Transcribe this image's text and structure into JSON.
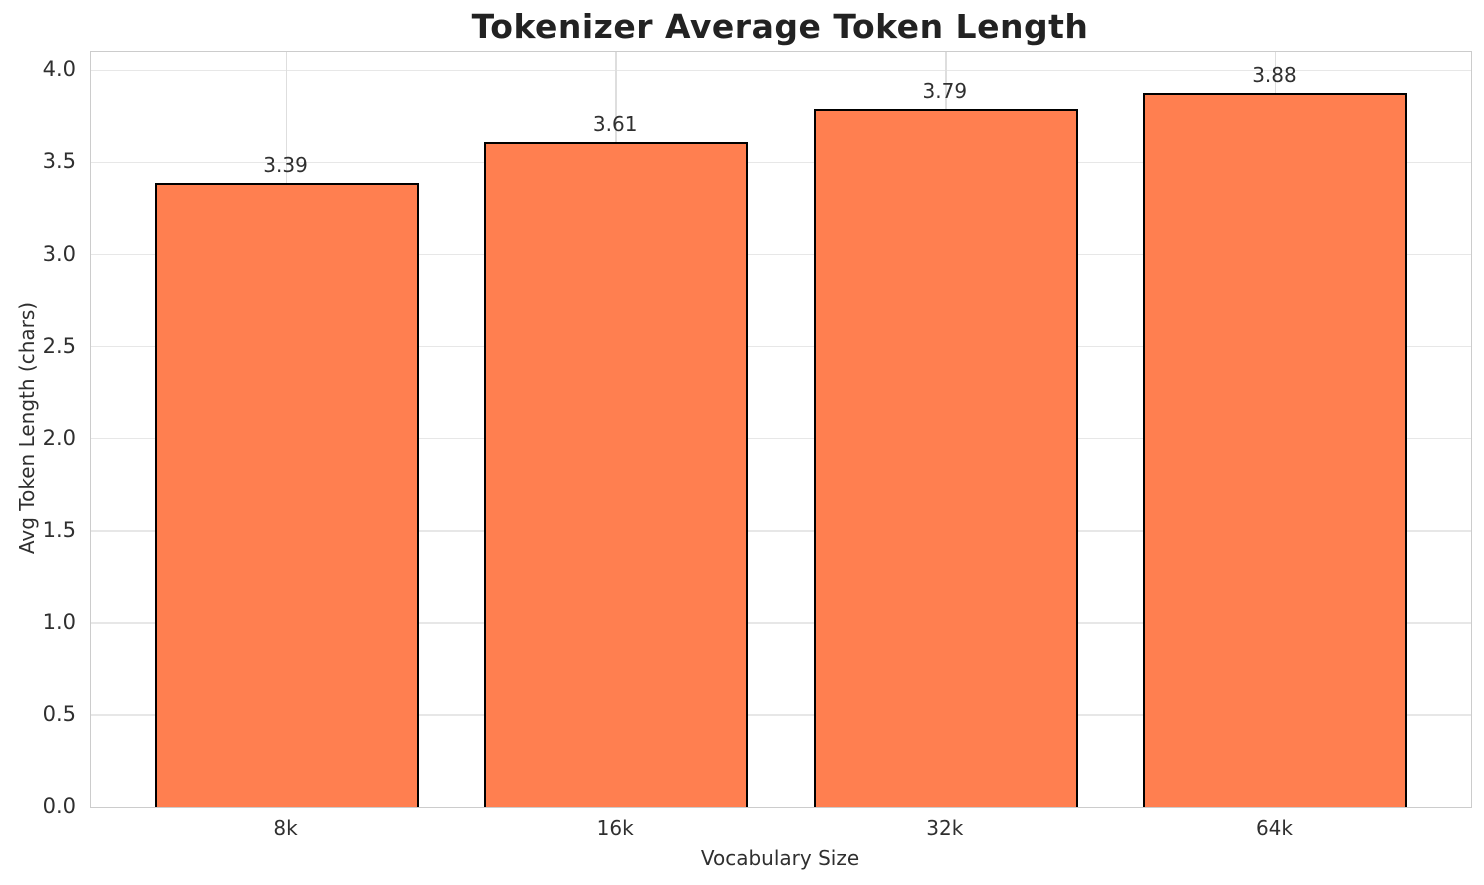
{
  "chart_data": {
    "type": "bar",
    "title": "Tokenizer Average Token Length",
    "xlabel": "Vocabulary Size",
    "ylabel": "Avg Token Length (chars)",
    "categories": [
      "8k",
      "16k",
      "32k",
      "64k"
    ],
    "values": [
      3.39,
      3.61,
      3.79,
      3.88
    ],
    "bar_labels": [
      "3.39",
      "3.61",
      "3.79",
      "3.88"
    ],
    "yticks": [
      0.0,
      0.5,
      1.0,
      1.5,
      2.0,
      2.5,
      3.0,
      3.5,
      4.0
    ],
    "ytick_labels": [
      "0.0",
      "0.5",
      "1.0",
      "1.5",
      "2.0",
      "2.5",
      "3.0",
      "3.5",
      "4.0"
    ],
    "ylim": [
      0,
      4.1
    ],
    "grid": true,
    "legend": false,
    "bar_color": "#FF7F50",
    "bar_edge_color": "#000000"
  }
}
